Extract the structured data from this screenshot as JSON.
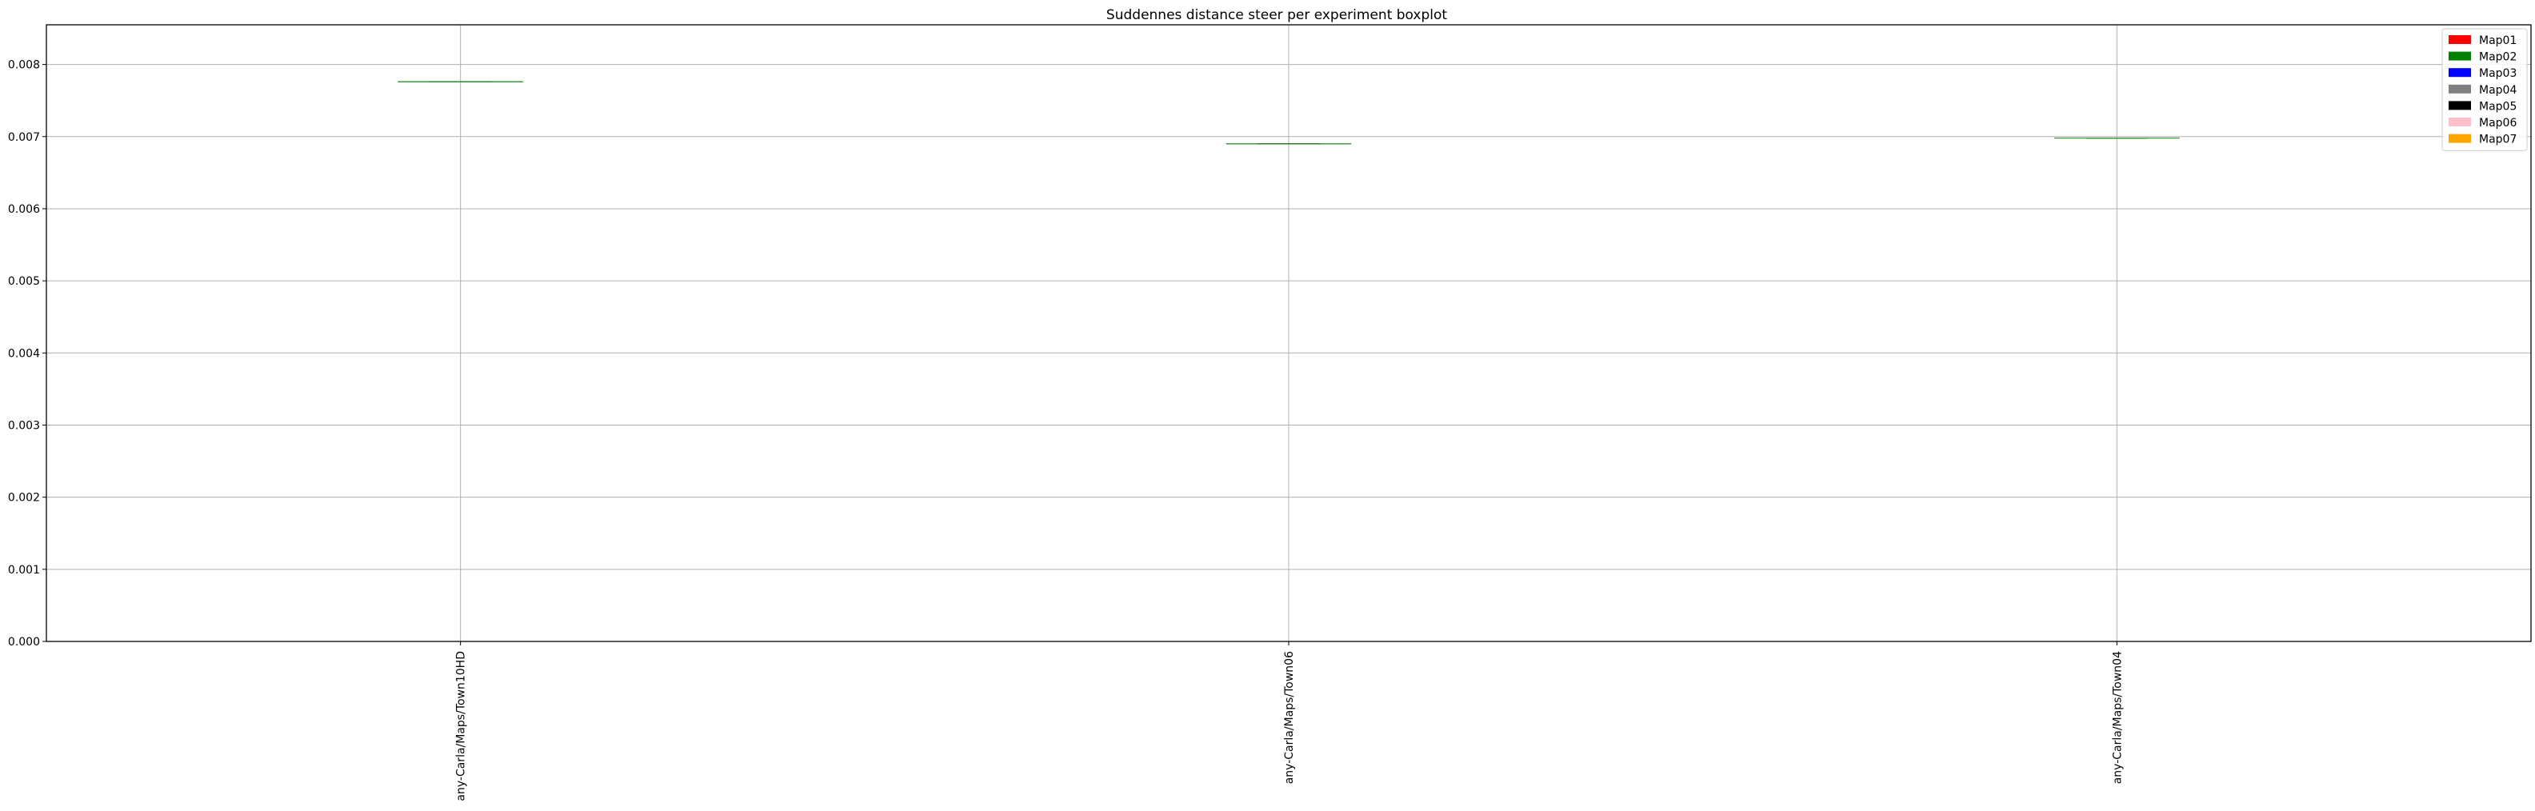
{
  "chart_data": {
    "type": "box",
    "title": "Suddennes distance steer per experiment boxplot",
    "xlabel": "",
    "ylabel": "",
    "categories": [
      "any-Carla/Maps/Town10HD",
      "any-Carla/Maps/Town06",
      "any-Carla/Maps/Town04"
    ],
    "boxes": [
      {
        "category": "any-Carla/Maps/Town10HD",
        "median": 0.00776,
        "q1": 0.00776,
        "q3": 0.00776,
        "whisker_low": 0.00776,
        "whisker_high": 0.00776
      },
      {
        "category": "any-Carla/Maps/Town06",
        "median": 0.0069,
        "q1": 0.0069,
        "q3": 0.0069,
        "whisker_low": 0.0069,
        "whisker_high": 0.0069
      },
      {
        "category": "any-Carla/Maps/Town04",
        "median": 0.00698,
        "q1": 0.00698,
        "q3": 0.00698,
        "whisker_low": 0.00698,
        "whisker_high": 0.00698
      }
    ],
    "ylim": [
      0,
      0.00855
    ],
    "yticks": [
      "0.000",
      "0.001",
      "0.002",
      "0.003",
      "0.004",
      "0.005",
      "0.006",
      "0.007",
      "0.008"
    ],
    "grid": true,
    "x_tick_rotation": "vertical",
    "legend": {
      "placement": "top-right",
      "entries": [
        {
          "label": "Map01",
          "color": "#ff0000"
        },
        {
          "label": "Map02",
          "color": "#008000"
        },
        {
          "label": "Map03",
          "color": "#0000ff"
        },
        {
          "label": "Map04",
          "color": "#808080"
        },
        {
          "label": "Map05",
          "color": "#000000"
        },
        {
          "label": "Map06",
          "color": "#ffc0cb"
        },
        {
          "label": "Map07",
          "color": "#ffa500"
        }
      ]
    },
    "median_color": "#2ca02c",
    "grid_color": "#b0b0b0"
  }
}
